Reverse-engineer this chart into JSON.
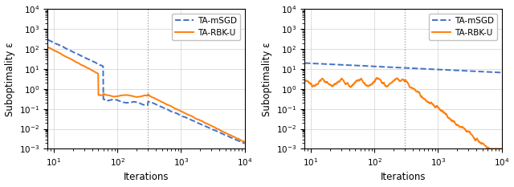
{
  "fig_width": 6.4,
  "fig_height": 2.33,
  "dpi": 100,
  "background_color": "#ffffff",
  "subplots": [
    {
      "xlabel": "Iterations",
      "ylabel": "Suboptimality ε",
      "vline_x": 300,
      "xlim": [
        8,
        10000
      ],
      "ylim": [
        0.001,
        10000.0
      ],
      "legend_loc": "upper right",
      "msgd_color": "#4472C4",
      "rbku_color": "#FF7F0E",
      "msgd_label": "TA-mSGD",
      "rbku_label": "TA-RBK-U"
    },
    {
      "xlabel": "Iterations",
      "ylabel": "Suboptimality ε",
      "vline_x": 300,
      "xlim": [
        8,
        10000
      ],
      "ylim": [
        0.001,
        10000.0
      ],
      "legend_loc": "upper right",
      "msgd_color": "#4472C4",
      "rbku_color": "#FF7F0E",
      "msgd_label": "TA-mSGD",
      "rbku_label": "TA-RBK-U"
    }
  ]
}
